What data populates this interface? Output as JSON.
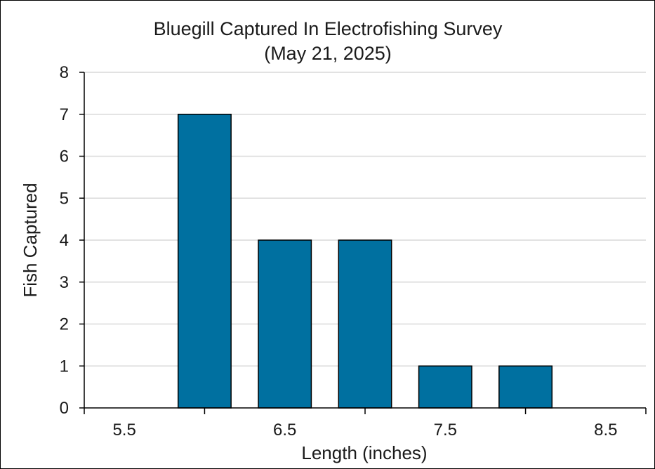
{
  "chart_data": {
    "type": "bar",
    "title": "Bluegill Captured In Electrofishing Survey",
    "subtitle": "(May 21, 2025)",
    "xlabel": "Length (inches)",
    "ylabel": "Fish Captured",
    "ylim": [
      0,
      8
    ],
    "y_ticks": [
      0,
      1,
      2,
      3,
      4,
      5,
      6,
      7,
      8
    ],
    "x_tick_labels": [
      {
        "label": "5.5",
        "value": 5.5
      },
      {
        "label": "6.5",
        "value": 6.5
      },
      {
        "label": "7.5",
        "value": 7.5
      },
      {
        "label": "8.5",
        "value": 8.5
      }
    ],
    "bins": [
      {
        "start": 5.25,
        "end": 5.75,
        "value": 0
      },
      {
        "start": 5.75,
        "end": 6.25,
        "value": 7
      },
      {
        "start": 6.25,
        "end": 6.75,
        "value": 4
      },
      {
        "start": 6.75,
        "end": 7.25,
        "value": 4
      },
      {
        "start": 7.25,
        "end": 7.75,
        "value": 1
      },
      {
        "start": 7.75,
        "end": 8.25,
        "value": 1
      },
      {
        "start": 8.25,
        "end": 8.75,
        "value": 0
      }
    ],
    "grid": true,
    "legend": "none",
    "bar_color": "#0070a0"
  }
}
